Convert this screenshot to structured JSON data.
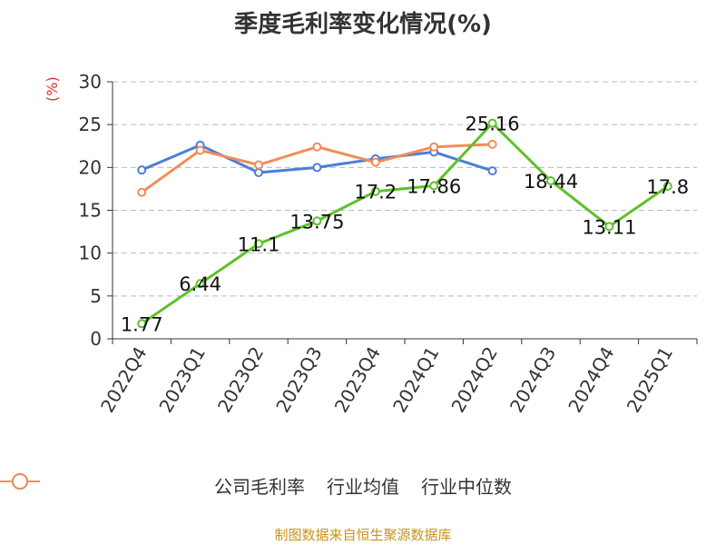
{
  "source_note": "制图数据来自恒生聚源数据库",
  "colors": {
    "axis": "#333333",
    "grid": "#bbbbbb"
  },
  "chart_data": {
    "type": "line",
    "title": "季度毛利率变化情况(%)",
    "ylabel": "(%)",
    "xlabel": "",
    "ylim": [
      0,
      30
    ],
    "yticks": [
      0,
      5,
      10,
      15,
      20,
      25,
      30
    ],
    "grid": true,
    "legend_position": "bottom",
    "categories": [
      "2022Q4",
      "2023Q1",
      "2023Q2",
      "2023Q3",
      "2023Q4",
      "2024Q1",
      "2024Q2",
      "2024Q3",
      "2024Q4",
      "2025Q1"
    ],
    "series": [
      {
        "name": "公司毛利率",
        "color": "#5fc129",
        "values": [
          1.77,
          6.44,
          11.1,
          13.75,
          17.2,
          17.86,
          25.16,
          18.44,
          13.11,
          17.8
        ],
        "labels": [
          "1.77",
          "6.44",
          "11.1",
          "13.75",
          "17.2",
          "17.86",
          "25.16",
          "18.44",
          "13.11",
          "17.8"
        ]
      },
      {
        "name": "行业均值",
        "color": "#4b7fd8",
        "values": [
          19.7,
          22.6,
          19.4,
          20.0,
          21.0,
          21.8,
          19.6,
          null,
          null,
          null
        ]
      },
      {
        "name": "行业中位数",
        "color": "#f28c5a",
        "values": [
          17.1,
          22.0,
          20.3,
          22.4,
          20.6,
          22.4,
          22.7,
          null,
          null,
          null
        ]
      }
    ]
  }
}
